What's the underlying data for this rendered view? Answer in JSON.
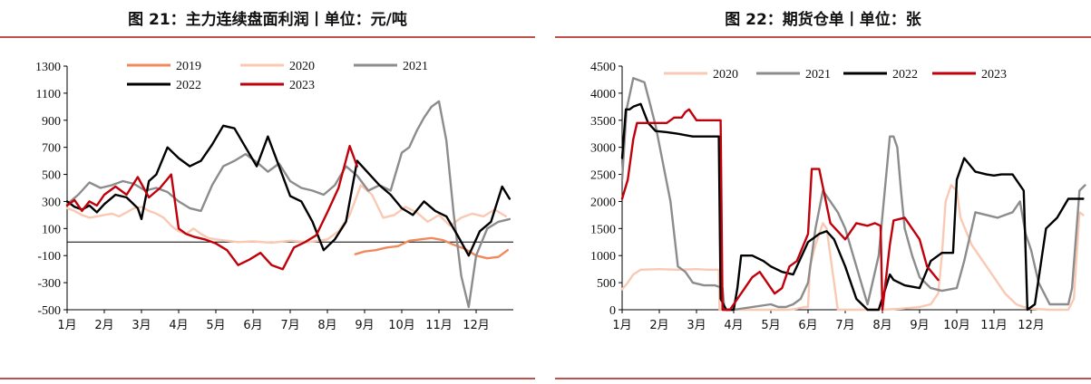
{
  "colors": {
    "rule": "#c0504d",
    "2019": "#f08a5d",
    "2020": "#f9c9b4",
    "2021": "#8c8c8c",
    "2022": "#000000",
    "2023": "#c0000a"
  },
  "chart_data": [
    {
      "type": "line",
      "title": "图 21：主力连续盘面利润丨单位：元/吨",
      "months": [
        "1月",
        "2月",
        "3月",
        "4月",
        "5月",
        "6月",
        "7月",
        "8月",
        "9月",
        "10月",
        "11月",
        "12月"
      ],
      "ylim": [
        -500,
        1300
      ],
      "yticks": [
        -500,
        -300,
        -100,
        100,
        300,
        500,
        700,
        900,
        1100,
        1300
      ],
      "zero_line": true,
      "legend": "top",
      "series": [
        {
          "name": "2019",
          "color": "#f08a5d",
          "x": [
            7.75,
            8.0,
            8.3,
            8.6,
            8.9,
            9.2,
            9.5,
            9.8,
            10.1,
            10.4,
            10.7,
            11.0,
            11.3,
            11.6,
            11.85
          ],
          "y": [
            -90,
            -70,
            -60,
            -40,
            -30,
            10,
            20,
            30,
            15,
            -20,
            -50,
            -100,
            -120,
            -110,
            -60
          ]
        },
        {
          "name": "2020",
          "color": "#f9c9b4",
          "x": [
            0.0,
            0.2,
            0.4,
            0.6,
            0.8,
            1.0,
            1.2,
            1.4,
            1.6,
            1.8,
            2.0,
            2.2,
            2.4,
            2.6,
            2.8,
            3.0,
            3.2,
            3.4,
            3.6,
            3.8,
            4.0,
            4.3,
            4.6,
            5.0,
            5.5,
            6.0,
            6.5,
            7.0,
            7.3,
            7.6,
            7.9,
            8.2,
            8.5,
            8.8,
            9.1,
            9.4,
            9.7,
            10.0,
            10.3,
            10.6,
            10.9,
            11.2,
            11.5,
            11.8
          ],
          "y": [
            250,
            230,
            200,
            180,
            190,
            200,
            210,
            190,
            220,
            250,
            260,
            230,
            210,
            180,
            120,
            80,
            60,
            100,
            60,
            30,
            20,
            10,
            0,
            5,
            -5,
            10,
            0,
            20,
            80,
            200,
            420,
            350,
            180,
            200,
            260,
            220,
            150,
            200,
            120,
            180,
            210,
            190,
            240,
            190
          ]
        },
        {
          "name": "2021",
          "color": "#8c8c8c",
          "x": [
            0.0,
            0.3,
            0.6,
            0.9,
            1.2,
            1.5,
            1.8,
            2.1,
            2.4,
            2.7,
            3.0,
            3.3,
            3.6,
            3.9,
            4.2,
            4.5,
            4.8,
            5.1,
            5.4,
            5.7,
            6.0,
            6.3,
            6.6,
            6.9,
            7.2,
            7.5,
            7.8,
            8.1,
            8.4,
            8.7,
            9.0,
            9.2,
            9.4,
            9.6,
            9.8,
            10.0,
            10.2,
            10.4,
            10.6,
            10.8,
            11.0,
            11.3,
            11.6,
            11.9
          ],
          "y": [
            280,
            350,
            440,
            400,
            420,
            450,
            430,
            380,
            400,
            370,
            300,
            250,
            230,
            420,
            560,
            600,
            650,
            590,
            520,
            580,
            450,
            400,
            380,
            350,
            420,
            560,
            490,
            380,
            420,
            380,
            660,
            700,
            820,
            920,
            1000,
            1040,
            750,
            200,
            -250,
            -480,
            -100,
            100,
            150,
            170
          ]
        },
        {
          "name": "2022",
          "color": "#000000",
          "x": [
            0.0,
            0.2,
            0.4,
            0.6,
            0.8,
            1.0,
            1.3,
            1.6,
            1.9,
            2.0,
            2.2,
            2.4,
            2.7,
            3.0,
            3.3,
            3.6,
            3.9,
            4.2,
            4.5,
            4.8,
            5.1,
            5.4,
            5.7,
            6.0,
            6.3,
            6.6,
            6.9,
            7.2,
            7.5,
            7.8,
            8.1,
            8.4,
            8.7,
            9.0,
            9.3,
            9.6,
            9.9,
            10.2,
            10.5,
            10.8,
            11.1,
            11.4,
            11.7,
            11.9
          ],
          "y": [
            300,
            260,
            240,
            270,
            220,
            280,
            350,
            330,
            250,
            170,
            450,
            500,
            700,
            620,
            560,
            600,
            720,
            860,
            840,
            700,
            560,
            780,
            560,
            340,
            300,
            150,
            -60,
            20,
            150,
            600,
            510,
            420,
            350,
            250,
            200,
            300,
            230,
            190,
            50,
            -100,
            80,
            150,
            410,
            320
          ]
        },
        {
          "name": "2023",
          "color": "#c0000a",
          "x": [
            0.0,
            0.2,
            0.4,
            0.6,
            0.8,
            1.0,
            1.3,
            1.6,
            1.9,
            2.2,
            2.5,
            2.8,
            3.0,
            3.2,
            3.4,
            3.7,
            4.0,
            4.3,
            4.6,
            4.9,
            5.2,
            5.5,
            5.8,
            6.1,
            6.4,
            6.7,
            7.0,
            7.3,
            7.6,
            7.8
          ],
          "y": [
            270,
            310,
            230,
            300,
            270,
            350,
            410,
            350,
            480,
            330,
            400,
            500,
            100,
            60,
            40,
            20,
            -10,
            -60,
            -170,
            -130,
            -80,
            -170,
            -200,
            -40,
            0,
            50,
            220,
            400,
            710,
            560
          ]
        }
      ]
    },
    {
      "type": "line",
      "title": "图 22：期货仓单丨单位：张",
      "months": [
        "1月",
        "2月",
        "3月",
        "4月",
        "5月",
        "6月",
        "7月",
        "8月",
        "9月",
        "10月",
        "11月",
        "12月"
      ],
      "ylim": [
        0,
        4500
      ],
      "yticks": [
        0,
        500,
        1000,
        1500,
        2000,
        2500,
        3000,
        3500,
        4000,
        4500
      ],
      "legend": "top",
      "series": [
        {
          "name": "2020",
          "color": "#f9c9b4",
          "x": [
            0.0,
            0.15,
            0.3,
            0.5,
            1.0,
            1.5,
            2.0,
            2.3,
            2.6,
            2.62,
            3.0,
            4.0,
            4.5,
            4.7,
            4.9,
            5.0,
            5.05,
            5.2,
            5.4,
            5.5,
            5.8,
            6.5,
            7.0,
            7.5,
            8.0,
            8.3,
            8.5,
            8.6,
            8.7,
            8.85,
            9.0,
            9.1,
            9.4,
            9.8,
            10.3,
            10.6,
            10.8,
            11.0,
            11.5,
            12.0,
            12.15,
            12.3,
            12.4
          ],
          "y": [
            380,
            500,
            650,
            740,
            750,
            740,
            750,
            740,
            740,
            0,
            0,
            0,
            0,
            20,
            50,
            50,
            800,
            1200,
            1600,
            1500,
            0,
            0,
            0,
            20,
            50,
            100,
            300,
            1000,
            2000,
            2300,
            2200,
            1700,
            1200,
            800,
            300,
            100,
            50,
            20,
            0,
            0,
            200,
            1800,
            1750
          ]
        },
        {
          "name": "2021",
          "color": "#8c8c8c",
          "x": [
            0.0,
            0.12,
            0.3,
            0.6,
            0.75,
            0.9,
            1.3,
            1.5,
            1.7,
            1.9,
            2.2,
            2.5,
            2.7,
            2.75,
            3.0,
            3.5,
            4.0,
            4.2,
            4.4,
            4.6,
            4.8,
            5.0,
            5.2,
            5.4,
            5.6,
            5.8,
            6.0,
            6.3,
            6.6,
            6.9,
            7.2,
            7.3,
            7.4,
            7.5,
            7.6,
            7.8,
            8.0,
            8.3,
            8.6,
            9.0,
            9.2,
            9.5,
            9.8,
            10.1,
            10.5,
            10.7,
            10.85,
            11.0,
            11.2,
            11.5,
            12.0,
            12.1,
            12.3,
            12.45
          ],
          "y": [
            2400,
            3700,
            4280,
            4200,
            3800,
            3400,
            2000,
            800,
            700,
            500,
            450,
            450,
            400,
            0,
            0,
            50,
            100,
            50,
            50,
            100,
            200,
            500,
            1500,
            2200,
            2000,
            1800,
            1500,
            800,
            100,
            1000,
            3200,
            3200,
            3000,
            2200,
            1500,
            1000,
            600,
            400,
            350,
            400,
            900,
            1800,
            1750,
            1700,
            1800,
            2000,
            1400,
            1100,
            500,
            100,
            100,
            400,
            2200,
            2300
          ]
        },
        {
          "name": "2022",
          "color": "#000000",
          "x": [
            0.0,
            0.1,
            0.2,
            0.3,
            0.5,
            0.7,
            0.9,
            1.2,
            1.5,
            1.9,
            2.3,
            2.6,
            2.65,
            2.8,
            3.0,
            3.1,
            3.2,
            3.5,
            3.8,
            4.0,
            4.3,
            4.6,
            5.0,
            5.3,
            5.5,
            5.7,
            6.0,
            6.3,
            6.6,
            6.9,
            7.2,
            7.3,
            7.6,
            8.0,
            8.3,
            8.6,
            8.9,
            9.0,
            9.2,
            9.5,
            9.8,
            10.0,
            10.2,
            10.5,
            10.8,
            10.9,
            11.1,
            11.4,
            11.7,
            12.0,
            12.4
          ],
          "y": [
            2800,
            3700,
            3700,
            3750,
            3800,
            3450,
            3300,
            3280,
            3250,
            3200,
            3200,
            3200,
            200,
            0,
            0,
            400,
            1000,
            1000,
            900,
            800,
            700,
            650,
            1250,
            1400,
            1450,
            1300,
            800,
            200,
            0,
            0,
            650,
            550,
            450,
            400,
            900,
            1050,
            1050,
            2400,
            2800,
            2550,
            2500,
            2480,
            2500,
            2500,
            2200,
            0,
            100,
            1500,
            1700,
            2050,
            2050
          ]
        },
        {
          "name": "2023",
          "color": "#c0000a",
          "x": [
            0.0,
            0.15,
            0.3,
            0.4,
            0.6,
            0.9,
            1.2,
            1.4,
            1.6,
            1.7,
            1.8,
            2.0,
            2.2,
            2.4,
            2.65,
            2.7,
            2.9,
            3.1,
            3.3,
            3.5,
            3.7,
            3.9,
            4.1,
            4.3,
            4.5,
            4.7,
            5.0,
            5.1,
            5.3,
            5.6,
            6.0,
            6.3,
            6.6,
            6.8,
            6.95,
            7.0,
            7.2,
            7.3,
            7.6,
            7.9,
            8.0,
            8.2,
            8.5
          ],
          "y": [
            2050,
            2400,
            3150,
            3450,
            3450,
            3450,
            3450,
            3550,
            3550,
            3650,
            3700,
            3500,
            3500,
            3500,
            3500,
            0,
            0,
            200,
            400,
            600,
            700,
            500,
            300,
            400,
            800,
            900,
            1400,
            2600,
            2600,
            1600,
            1300,
            1600,
            1550,
            1600,
            1550,
            0,
            1200,
            1650,
            1700,
            1400,
            1300,
            800,
            550
          ]
        }
      ]
    }
  ]
}
